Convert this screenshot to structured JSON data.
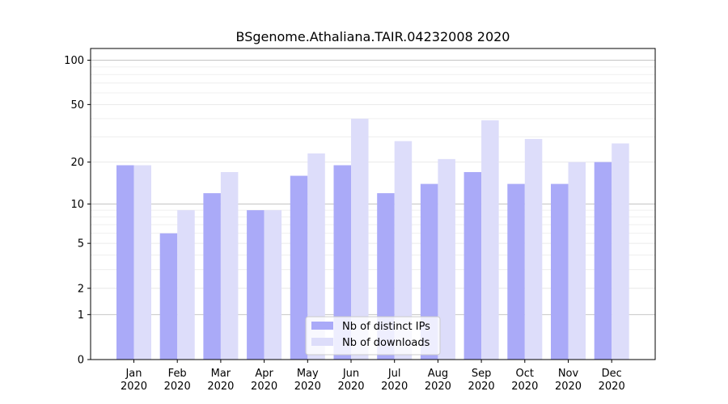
{
  "chart_data": {
    "type": "bar",
    "title": "BSgenome.Athaliana.TAIR.04232008 2020",
    "xlabel": "",
    "ylabel": "",
    "yscale": "log1p",
    "ylim": [
      0,
      120
    ],
    "yticks": [
      0,
      1,
      2,
      5,
      10,
      20,
      50,
      100
    ],
    "categories": [
      [
        "Jan",
        "2020"
      ],
      [
        "Feb",
        "2020"
      ],
      [
        "Mar",
        "2020"
      ],
      [
        "Apr",
        "2020"
      ],
      [
        "May",
        "2020"
      ],
      [
        "Jun",
        "2020"
      ],
      [
        "Jul",
        "2020"
      ],
      [
        "Aug",
        "2020"
      ],
      [
        "Sep",
        "2020"
      ],
      [
        "Oct",
        "2020"
      ],
      [
        "Nov",
        "2020"
      ],
      [
        "Dec",
        "2020"
      ]
    ],
    "series": [
      {
        "name": "Nb of distinct IPs",
        "color": "#aaaaf8",
        "values": [
          19,
          6,
          12,
          9,
          16,
          19,
          12,
          14,
          17,
          14,
          14,
          20
        ]
      },
      {
        "name": "Nb of downloads",
        "color": "#ddddfa",
        "values": [
          19,
          9,
          17,
          9,
          23,
          40,
          28,
          21,
          39,
          29,
          20,
          27
        ]
      }
    ],
    "legend_position": "bottom-center",
    "grid": true
  }
}
